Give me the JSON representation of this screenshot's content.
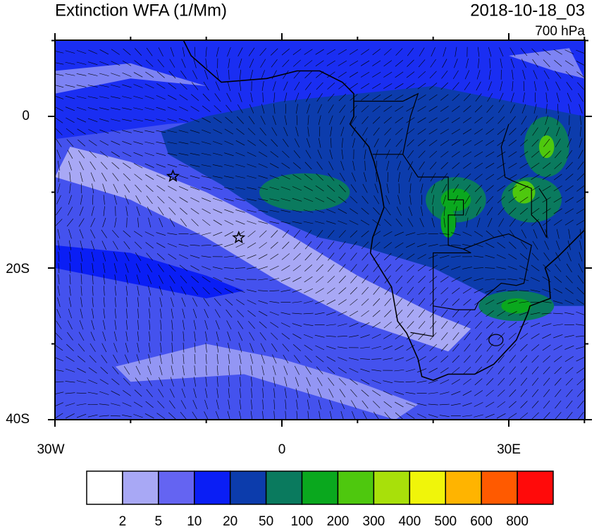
{
  "header": {
    "title": "Extinction WFA (1/Mm)",
    "date": "2018-10-18_03",
    "level": "700 hPa"
  },
  "axes": {
    "x_labels": [
      "30W",
      "0",
      "30E"
    ],
    "y_labels": [
      "0",
      "20S",
      "40S"
    ]
  },
  "colorbar": {
    "colors": [
      "#ffffff",
      "#a8a8f5",
      "#6464f2",
      "#0a1ef5",
      "#0c3cac",
      "#0a7a5e",
      "#0aa81e",
      "#4ec80e",
      "#a8e00a",
      "#f0f50a",
      "#ffb400",
      "#ff5a00",
      "#ff0a0a"
    ],
    "labels": [
      2,
      5,
      10,
      20,
      50,
      100,
      200,
      300,
      400,
      500,
      600,
      800
    ]
  }
}
